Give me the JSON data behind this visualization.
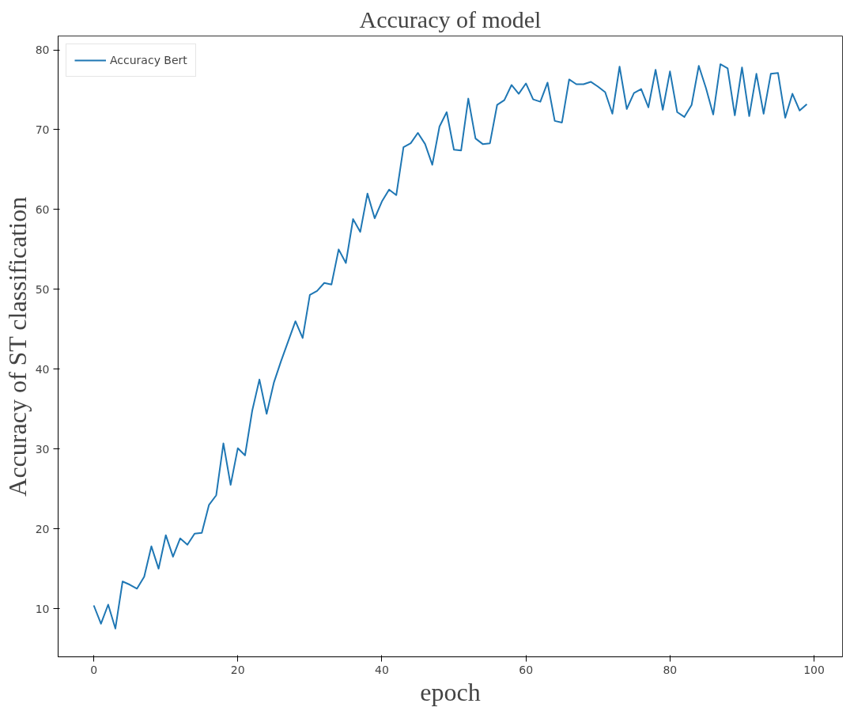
{
  "chart_data": {
    "type": "line",
    "title": "Accuracy of model",
    "xlabel": "epoch",
    "ylabel": "Accuracy of ST classification",
    "x": [
      0,
      1,
      2,
      3,
      4,
      5,
      6,
      7,
      8,
      9,
      10,
      11,
      12,
      13,
      14,
      15,
      16,
      17,
      18,
      19,
      20,
      21,
      22,
      23,
      24,
      25,
      26,
      27,
      28,
      29,
      30,
      31,
      32,
      33,
      34,
      35,
      36,
      37,
      38,
      39,
      40,
      41,
      42,
      43,
      44,
      45,
      46,
      47,
      48,
      49,
      50,
      51,
      52,
      53,
      54,
      55,
      56,
      57,
      58,
      59,
      60,
      61,
      62,
      63,
      64,
      65,
      66,
      67,
      68,
      69,
      70,
      71,
      72,
      73,
      74,
      75,
      76,
      77,
      78,
      79,
      80,
      81,
      82,
      83,
      84,
      85,
      86,
      87,
      88,
      89,
      90,
      91,
      92,
      93,
      94,
      95,
      96,
      97,
      98,
      99
    ],
    "series": [
      {
        "name": "Accuracy Bert",
        "color": "#1f77b4",
        "values": [
          10.4,
          8.1,
          10.5,
          7.5,
          13.4,
          13.0,
          12.5,
          14.0,
          17.8,
          15.0,
          19.2,
          16.5,
          18.8,
          18.0,
          19.4,
          19.5,
          23.0,
          24.2,
          30.7,
          25.5,
          30.1,
          29.2,
          34.8,
          38.7,
          34.4,
          38.3,
          41.0,
          43.5,
          46.0,
          43.9,
          49.3,
          49.8,
          50.8,
          50.6,
          55.0,
          53.3,
          58.8,
          57.2,
          62.0,
          58.9,
          61.0,
          62.5,
          61.8,
          67.8,
          68.3,
          69.6,
          68.2,
          65.6,
          70.4,
          72.2,
          67.5,
          67.4,
          73.9,
          68.9,
          68.2,
          68.3,
          73.1,
          73.7,
          75.6,
          74.5,
          75.8,
          73.8,
          73.5,
          75.9,
          71.1,
          70.9,
          76.3,
          75.7,
          75.7,
          76.0,
          75.4,
          74.7,
          72.0,
          77.9,
          72.6,
          74.6,
          75.1,
          72.8,
          77.5,
          72.5,
          77.3,
          72.2,
          71.6,
          73.1,
          78.0,
          75.2,
          71.9,
          78.2,
          77.7,
          71.8,
          77.8,
          71.7,
          77.0,
          72.0,
          77.0,
          77.1,
          71.5,
          74.5,
          72.4,
          73.2
        ]
      }
    ],
    "xlim": [
      -4.95,
      103.95
    ],
    "ylim": [
      3.96,
      81.74
    ],
    "xticks": [
      0,
      20,
      40,
      60,
      80,
      100
    ],
    "yticks": [
      10,
      20,
      30,
      40,
      50,
      60,
      70,
      80
    ],
    "grid": false,
    "legend": "top left",
    "marker": "none",
    "line_style": "solid"
  }
}
